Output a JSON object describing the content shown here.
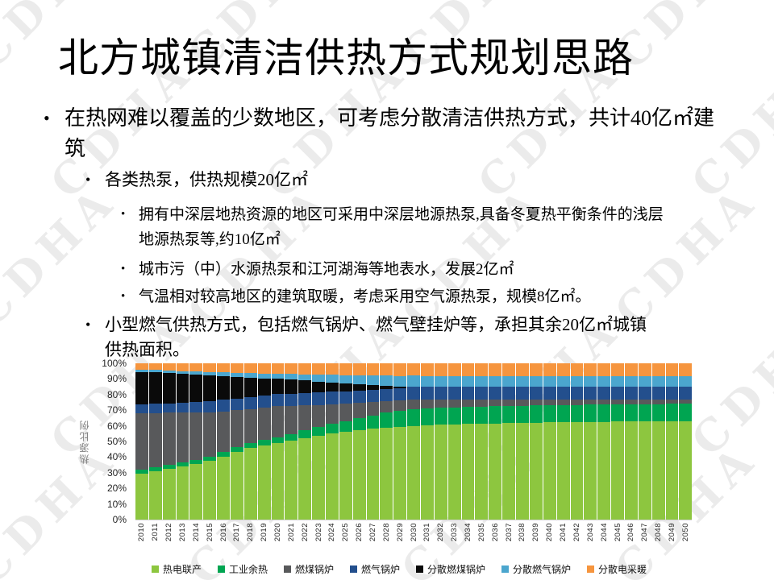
{
  "slide": {
    "title": "北方城镇清洁供热方式规划思路",
    "watermark_text": "CDHA",
    "bullets": [
      {
        "level": 1,
        "text": "在热网难以覆盖的少数地区，可考虑分散清洁供热方式，共计40亿㎡建筑"
      },
      {
        "level": 2,
        "text": "各类热泵，供热规模20亿㎡"
      },
      {
        "level": 3,
        "text": "拥有中深层地热资源的地区可采用中深层地源热泵,具备冬夏热平衡条件的浅层地源热泵等,约10亿㎡"
      },
      {
        "level": 3,
        "text": "城市污（中）水源热泵和江河湖海等地表水，发展2亿㎡"
      },
      {
        "level": 3,
        "text": "气温相对较高地区的建筑取暖，考虑采用空气源热泵，规模8亿㎡。"
      },
      {
        "level": 2,
        "text": "小型燃气供热方式，包括燃气锅炉、燃气壁挂炉等，承担其余20亿㎡城镇供热面积。"
      }
    ]
  },
  "chart_data": {
    "type": "bar",
    "stacked": true,
    "percent": true,
    "unit": "%",
    "title": "",
    "xlabel": "",
    "ylabel": "热源比例",
    "ylim": [
      0,
      100
    ],
    "grid": false,
    "legend_position": "bottom",
    "y_ticks": [
      "100%",
      "90%",
      "80%",
      "70%",
      "60%",
      "50%",
      "40%",
      "30%",
      "20%",
      "10%",
      "0%"
    ],
    "categories": [
      "2010",
      "2011",
      "2012",
      "2013",
      "2014",
      "2015",
      "2016",
      "2017",
      "2018",
      "2019",
      "2020",
      "2021",
      "2022",
      "2023",
      "2024",
      "2025",
      "2026",
      "2027",
      "2028",
      "2029",
      "2030",
      "2031",
      "2032",
      "2033",
      "2034",
      "2035",
      "2036",
      "2037",
      "2038",
      "2039",
      "2040",
      "2041",
      "2042",
      "2043",
      "2044",
      "2045",
      "2046",
      "2047",
      "2048",
      "2049",
      "2050"
    ],
    "series_order": "bottom-to-top",
    "series": [
      {
        "name": "热电联产",
        "color": "#8DC63F",
        "values": [
          29.5,
          30.8,
          32.2,
          33.6,
          35.2,
          37,
          40,
          43,
          46,
          47.5,
          49,
          50.8,
          52.4,
          53.8,
          55,
          56,
          57,
          57.8,
          58.6,
          59.3,
          60,
          60.3,
          60.6,
          60.9,
          61.1,
          61.3,
          61.5,
          61.7,
          61.9,
          62,
          62.1,
          62.2,
          62.3,
          62.4,
          62.5,
          62.6,
          62.7,
          62.8,
          62.9,
          63,
          63
        ]
      },
      {
        "name": "工业余热",
        "color": "#00A551",
        "values": [
          2.5,
          2.5,
          2.5,
          2.5,
          2.5,
          2.5,
          2.6,
          2.8,
          3,
          3.2,
          3.5,
          4.1,
          4.8,
          5.5,
          6.2,
          7,
          7.8,
          8.6,
          9.4,
          10.2,
          11,
          11,
          11,
          11,
          11,
          11,
          11,
          11,
          11,
          11,
          11,
          11,
          11,
          11,
          11,
          11,
          11,
          11,
          11,
          11,
          11
        ]
      },
      {
        "name": "燃煤锅炉",
        "color": "#58595B",
        "values": [
          36,
          34.6,
          33.2,
          31.8,
          30.2,
          28.5,
          26,
          23.5,
          21.5,
          20.7,
          20,
          18,
          16,
          14.2,
          12.6,
          11,
          9.6,
          8.3,
          7.2,
          6.5,
          6,
          5.7,
          5.4,
          5.1,
          4.9,
          4.7,
          4.5,
          4.3,
          4.1,
          3.9,
          3.8,
          3.7,
          3.6,
          3.5,
          3.4,
          3.3,
          3.2,
          3.1,
          3.1,
          3,
          3
        ]
      },
      {
        "name": "燃气锅炉",
        "color": "#234F8D",
        "values": [
          5.5,
          5.8,
          6.1,
          6.4,
          6.7,
          7,
          7.2,
          7.4,
          7.6,
          7.65,
          7.7,
          7.8,
          7.9,
          8,
          8,
          8,
          8,
          8,
          8,
          8,
          8,
          8,
          8,
          8,
          8,
          8,
          8,
          8,
          8,
          8,
          8,
          8,
          8,
          8,
          8,
          8,
          8,
          8,
          8,
          8,
          8
        ]
      },
      {
        "name": "分散燃煤锅炉",
        "color": "#0A0A0A",
        "values": [
          21,
          20,
          19,
          18,
          17,
          16,
          14.8,
          13.4,
          12.4,
          11.2,
          10,
          9,
          8,
          7,
          6,
          5,
          4,
          3,
          2,
          1,
          0.3,
          0,
          0,
          0,
          0,
          0,
          0,
          0,
          0,
          0,
          0,
          0,
          0,
          0,
          0,
          0,
          0,
          0,
          0,
          0,
          0
        ]
      },
      {
        "name": "分散燃气锅炉",
        "color": "#4BA6CE",
        "values": [
          1.5,
          1.6,
          1.8,
          2,
          2.2,
          2.4,
          2.6,
          2.8,
          3,
          3.1,
          3.2,
          3.6,
          4.1,
          4.5,
          4.9,
          5.4,
          5.8,
          6.1,
          6.4,
          6.7,
          6.9,
          7,
          7,
          7,
          7,
          7,
          7,
          7,
          7,
          7,
          7,
          7,
          7,
          7,
          7,
          7,
          7,
          7,
          7,
          7,
          7
        ]
      },
      {
        "name": "分散电采暖",
        "color": "#F6953E",
        "values": [
          4,
          4.3,
          4.6,
          4.9,
          5.2,
          5.5,
          5.8,
          6.1,
          6.4,
          6.5,
          6.6,
          6.8,
          7,
          7.2,
          7.4,
          7.6,
          7.7,
          7.8,
          7.9,
          8,
          8,
          8,
          8,
          8,
          8,
          8,
          8,
          8,
          8,
          8,
          8,
          8,
          8,
          8,
          8,
          8,
          8,
          8,
          8,
          8,
          8
        ]
      }
    ]
  }
}
